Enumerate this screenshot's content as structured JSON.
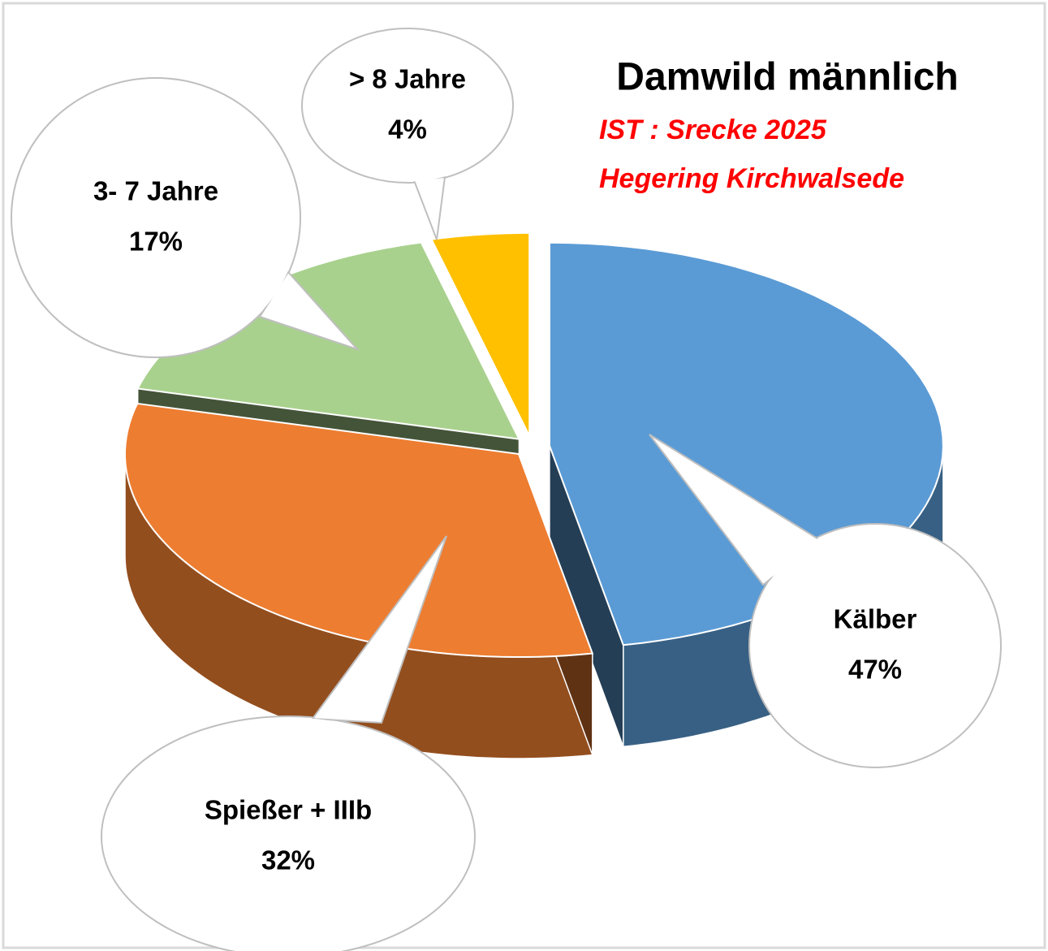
{
  "chart_data": {
    "type": "pie",
    "title": "Damwild männlich",
    "subtitle": [
      "IST :  Srecke 2025",
      "Hegering Kirchwalsede"
    ],
    "categories": [
      "Kälber",
      "Spießer + IIIb",
      "3- 7 Jahre",
      "> 8 Jahre"
    ],
    "values": [
      47,
      32,
      17,
      4
    ],
    "value_labels": [
      "47%",
      "32%",
      "17%",
      "4%"
    ],
    "colors": [
      "#5b9bd5",
      "#ed7d31",
      "#a9d18e",
      "#ffc000"
    ],
    "start_angle": 0,
    "direction": "clockwise",
    "exploded": true
  }
}
